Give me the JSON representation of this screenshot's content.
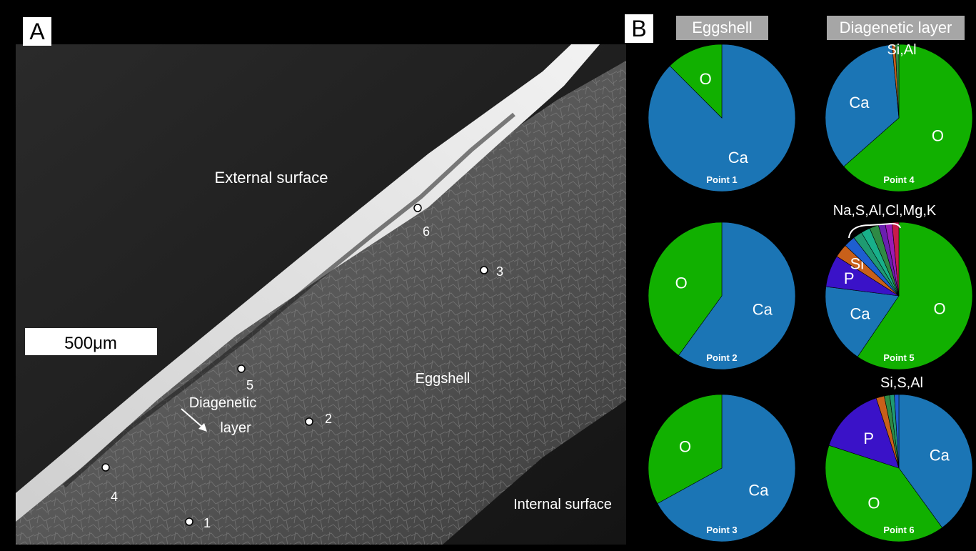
{
  "panel_a": {
    "letter": "A",
    "scale_bar": "500μm",
    "external_surface": "External surface",
    "internal_surface": "Internal surface",
    "eggshell": "Eggshell",
    "diagenetic_line1": "Diagenetic",
    "diagenetic_line2": "layer",
    "points": [
      "1",
      "2",
      "3",
      "4",
      "5",
      "6"
    ]
  },
  "panel_b": {
    "letter": "B",
    "header_left": "Eggshell",
    "header_right": "Diagenetic layer"
  },
  "colors": {
    "Ca": "#1b75b5",
    "O": "#11b000",
    "P": "#3a12c8",
    "Si": "#c9601a",
    "Al": "#2f8a45",
    "minor1": "#1e5fd0",
    "minor2": "#1f9a72",
    "minor3": "#18b08a",
    "minor4": "#6a1fb0",
    "minor5": "#9a1ab8",
    "minor6": "#c81a4a",
    "minor7": "#b01a7a"
  },
  "chart_data": [
    {
      "type": "pie",
      "title": "Point 1",
      "slices": [
        {
          "label": "Ca",
          "value": 87.5
        },
        {
          "label": "O",
          "value": 12.5
        }
      ]
    },
    {
      "type": "pie",
      "title": "Point 2",
      "slices": [
        {
          "label": "Ca",
          "value": 60
        },
        {
          "label": "O",
          "value": 40
        }
      ]
    },
    {
      "type": "pie",
      "title": "Point 3",
      "slices": [
        {
          "label": "Ca",
          "value": 67
        },
        {
          "label": "O",
          "value": 33
        }
      ]
    },
    {
      "type": "pie",
      "title": "Point 4",
      "annotation": "Si,Al",
      "slices": [
        {
          "label": "O",
          "value": 63.5
        },
        {
          "label": "Ca",
          "value": 35
        },
        {
          "label": "",
          "value": 0.7
        },
        {
          "label": "",
          "value": 0.8
        }
      ]
    },
    {
      "type": "pie",
      "title": "Point 5",
      "annotation": "Na,S,Al,Cl,Mg,K",
      "slices": [
        {
          "label": "O",
          "value": 59.5
        },
        {
          "label": "Ca",
          "value": 17.5
        },
        {
          "label": "P",
          "value": 7
        },
        {
          "label": "Si",
          "value": 3
        },
        {
          "label": "",
          "value": 2.5
        },
        {
          "label": "",
          "value": 2
        },
        {
          "label": "",
          "value": 2
        },
        {
          "label": "",
          "value": 2
        },
        {
          "label": "",
          "value": 1.5
        },
        {
          "label": "",
          "value": 1.5
        },
        {
          "label": "",
          "value": 1.5
        }
      ]
    },
    {
      "type": "pie",
      "title": "Point 6",
      "annotation": "Si,S,Al",
      "slices": [
        {
          "label": "Ca",
          "value": 40
        },
        {
          "label": "O",
          "value": 40
        },
        {
          "label": "P",
          "value": 15
        },
        {
          "label": "",
          "value": 1.8
        },
        {
          "label": "",
          "value": 1.2
        },
        {
          "label": "",
          "value": 1
        },
        {
          "label": "",
          "value": 1
        }
      ]
    }
  ]
}
